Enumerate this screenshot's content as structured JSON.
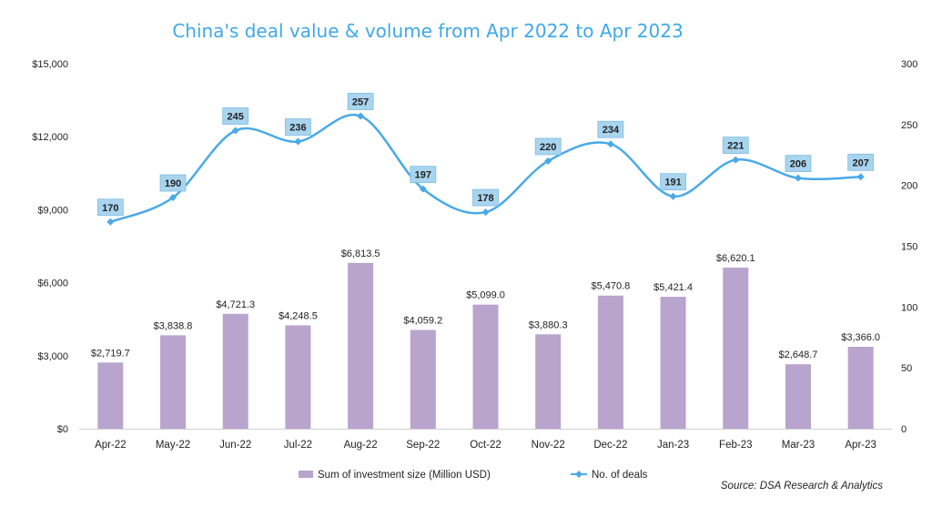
{
  "chart_data": {
    "type": "bar+line",
    "title": "China's deal value & volume from Apr 2022 to Apr 2023",
    "categories": [
      "Apr-22",
      "May-22",
      "Jun-22",
      "Jul-22",
      "Aug-22",
      "Sep-22",
      "Oct-22",
      "Nov-22",
      "Dec-22",
      "Jan-23",
      "Feb-23",
      "Mar-23",
      "Apr-23"
    ],
    "series": [
      {
        "name": "Sum of investment size (Million USD)",
        "type": "bar",
        "axis": "left",
        "color": "#b8a4cd",
        "values": [
          2719.7,
          3838.8,
          4721.3,
          4248.5,
          6813.5,
          4059.2,
          5099.0,
          3880.3,
          5470.8,
          5421.4,
          6620.1,
          2648.7,
          3366.0
        ],
        "labels": [
          "$2,719.7",
          "$3,838.8",
          "$4,721.3",
          "$4,248.5",
          "$6,813.5",
          "$4,059.2",
          "$5,099.0",
          "$3,880.3",
          "$5,470.8",
          "$5,421.4",
          "$6,620.1",
          "$2,648.7",
          "$3,366.0"
        ]
      },
      {
        "name": "No. of deals",
        "type": "line",
        "axis": "right",
        "color": "#4aa9e6",
        "label_bg": "#a9d4ee",
        "values": [
          170,
          190,
          245,
          236,
          257,
          197,
          178,
          220,
          234,
          191,
          221,
          206,
          207
        ]
      }
    ],
    "y_left": {
      "min": 0,
      "max": 15000,
      "ticks": [
        0,
        3000,
        6000,
        9000,
        12000,
        15000
      ],
      "tick_labels": [
        "$0",
        "$3,000",
        "$6,000",
        "$9,000",
        "$12,000",
        "$15,000"
      ]
    },
    "y_right": {
      "min": 0,
      "max": 300,
      "ticks": [
        0,
        50,
        100,
        150,
        200,
        250,
        300
      ],
      "tick_labels": [
        "0",
        "50",
        "100",
        "150",
        "200",
        "250",
        "300"
      ]
    },
    "grid": false,
    "legend_position": "bottom"
  },
  "source": "Source: DSA Research & Analytics"
}
